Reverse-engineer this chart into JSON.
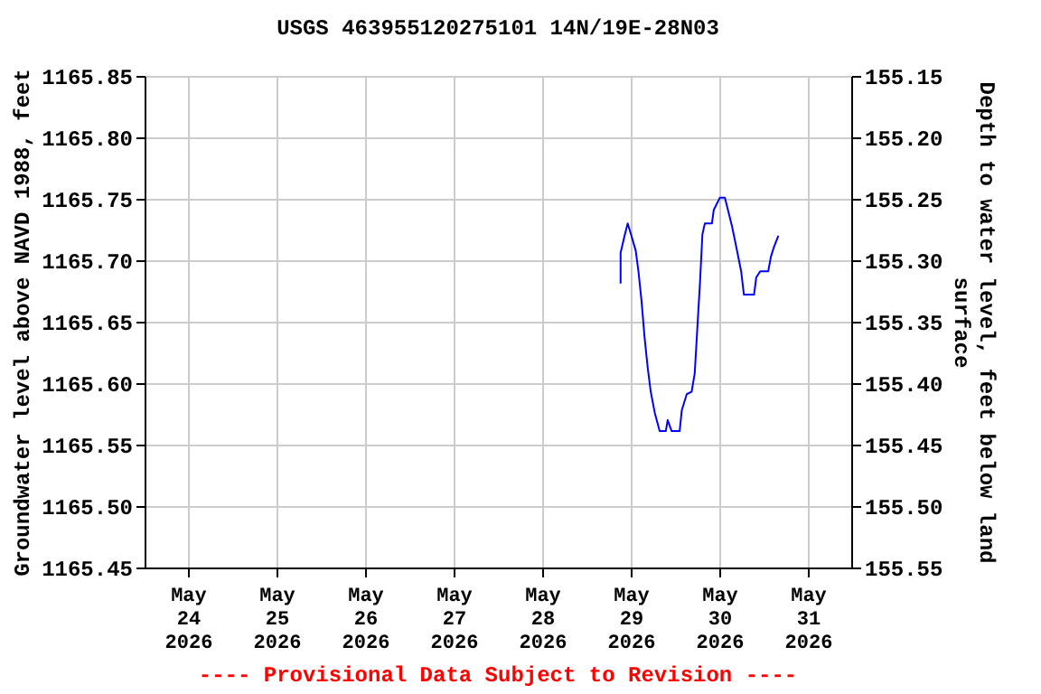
{
  "chart_data": {
    "type": "line",
    "title": "USGS 463955120275101 14N/19E-28N03",
    "ylabel": "Groundwater level above NAVD 1988, feet",
    "y2label": "Depth to water level, feet below land surface",
    "annotations": [
      "---- Provisional Data Subject to Revision ----"
    ],
    "xlim": [
      "2026-05-23T12:15",
      "2026-05-31T11:45"
    ],
    "xticks": [
      {
        "value": "2026-05-24",
        "label": "May 24 2026"
      },
      {
        "value": "2026-05-25",
        "label": "May 25 2026"
      },
      {
        "value": "2026-05-26",
        "label": "May 26 2026"
      },
      {
        "value": "2026-05-27",
        "label": "May 27 2026"
      },
      {
        "value": "2026-05-28",
        "label": "May 28 2026"
      },
      {
        "value": "2026-05-29",
        "label": "May 29 2026"
      },
      {
        "value": "2026-05-30",
        "label": "May 30 2026"
      },
      {
        "value": "2026-05-31",
        "label": "May 31 2026"
      }
    ],
    "ylim": [
      1165.45,
      1165.85
    ],
    "yticks": [
      1165.45,
      {
        "value": 1165.5,
        "label": "1165.50"
      },
      1165.55,
      {
        "value": 1165.6,
        "label": "1165.60"
      },
      1165.65,
      {
        "value": 1165.7,
        "label": "1165.70"
      },
      1165.75,
      {
        "value": 1165.8,
        "label": "1165.80"
      },
      1165.85
    ],
    "y2lim": [
      155.55,
      155.15
    ],
    "y2ticks": [
      {
        "value": 155.55,
        "label": "155.55"
      },
      {
        "value": 155.5,
        "label": "155.50"
      },
      {
        "value": 155.45,
        "label": "155.45"
      },
      {
        "value": 155.4,
        "label": "155.40"
      },
      {
        "value": 155.35,
        "label": "155.35"
      },
      {
        "value": 155.3,
        "label": "155.30"
      },
      {
        "value": 155.25,
        "label": "155.25"
      },
      {
        "value": 155.2,
        "label": "155.20"
      },
      {
        "value": 155.15,
        "label": "155.15"
      }
    ],
    "grid": true,
    "marker": "none",
    "line_style": "solid",
    "x": [
      "2026-05-28T21:15",
      "2026-05-28T21:15",
      "2026-05-28T22:20",
      "2026-05-28T23:10",
      "2026-05-29T00:10",
      "2026-05-29T01:20",
      "2026-05-29T02:05",
      "2026-05-29T02:55",
      "2026-05-29T03:45",
      "2026-05-29T04:35",
      "2026-05-29T05:25",
      "2026-05-29T06:30",
      "2026-05-29T07:50",
      "2026-05-29T09:30",
      "2026-05-29T10:00",
      "2026-05-29T11:05",
      "2026-05-29T13:15",
      "2026-05-29T13:50",
      "2026-05-29T15:10",
      "2026-05-29T16:30",
      "2026-05-29T17:20",
      "2026-05-29T18:05",
      "2026-05-29T18:45",
      "2026-05-29T19:25",
      "2026-05-29T20:05",
      "2026-05-29T22:00",
      "2026-05-29T22:30",
      "2026-05-30T00:10",
      "2026-05-30T01:30",
      "2026-05-30T02:20",
      "2026-05-30T03:25",
      "2026-05-30T04:35",
      "2026-05-30T05:55",
      "2026-05-30T06:40",
      "2026-05-30T09:25",
      "2026-05-30T10:00",
      "2026-05-30T11:05",
      "2026-05-30T13:15",
      "2026-05-30T14:00",
      "2026-05-30T14:50",
      "2026-05-30T16:00"
    ],
    "series": [
      {
        "color": "#0000ff",
        "values": [
          1165.681,
          1165.706,
          1165.72,
          1165.73,
          1165.72,
          1165.708,
          1165.691,
          1165.667,
          1165.637,
          1165.613,
          1165.593,
          1165.576,
          1165.561,
          1165.561,
          1165.57,
          1165.561,
          1165.561,
          1165.578,
          1165.591,
          1165.593,
          1165.608,
          1165.647,
          1165.681,
          1165.721,
          1165.73,
          1165.73,
          1165.741,
          1165.751,
          1165.751,
          1165.741,
          1165.728,
          1165.711,
          1165.691,
          1165.672,
          1165.672,
          1165.686,
          1165.691,
          1165.691,
          1165.703,
          1165.711,
          1165.72
        ]
      }
    ]
  }
}
